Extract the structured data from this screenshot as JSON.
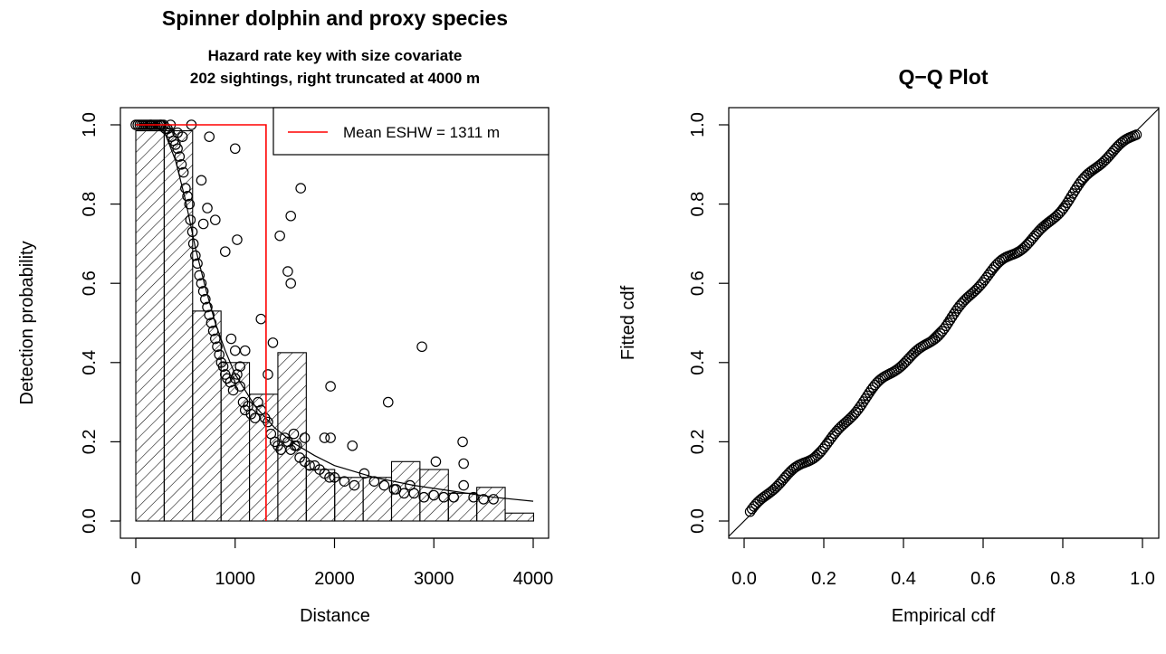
{
  "chart_data": [
    {
      "type": "bar",
      "title": "Spinner dolphin and proxy species",
      "subtitle_lines": [
        "Hazard rate key with size covariate",
        "202 sightings, right truncated at 4000 m"
      ],
      "xlabel": "Distance",
      "ylabel": "Detection probability",
      "xlim": [
        0,
        4000
      ],
      "ylim": [
        0,
        1
      ],
      "x_ticks": [
        "0",
        "1000",
        "2000",
        "3000",
        "4000"
      ],
      "y_ticks": [
        "0.0",
        "0.2",
        "0.4",
        "0.6",
        "0.8",
        "1.0"
      ],
      "bin_width": 286,
      "histogram": [
        0.985,
        0.985,
        0.53,
        0.4,
        0.32,
        0.425,
        0.13,
        0.11,
        0.11,
        0.15,
        0.13,
        0.07,
        0.085,
        0.02
      ],
      "fitted_curve": {
        "x": [
          0,
          100,
          200,
          300,
          400,
          500,
          600,
          700,
          800,
          900,
          1000,
          1200,
          1400,
          1600,
          1800,
          2000,
          2400,
          2800,
          3200,
          3600,
          4000
        ],
        "y": [
          1.0,
          1.0,
          0.995,
          0.975,
          0.91,
          0.81,
          0.69,
          0.59,
          0.5,
          0.43,
          0.37,
          0.29,
          0.235,
          0.195,
          0.165,
          0.14,
          0.11,
          0.09,
          0.075,
          0.06,
          0.05
        ]
      },
      "points": [
        [
          0,
          1.0
        ],
        [
          20,
          1.0
        ],
        [
          40,
          1.0
        ],
        [
          60,
          1.0
        ],
        [
          80,
          1.0
        ],
        [
          100,
          1.0
        ],
        [
          120,
          1.0
        ],
        [
          140,
          1.0
        ],
        [
          160,
          1.0
        ],
        [
          180,
          1.0
        ],
        [
          200,
          1.0
        ],
        [
          220,
          1.0
        ],
        [
          240,
          1.0
        ],
        [
          260,
          1.0
        ],
        [
          280,
          1.0
        ],
        [
          300,
          0.99
        ],
        [
          320,
          0.99
        ],
        [
          340,
          0.98
        ],
        [
          360,
          0.97
        ],
        [
          380,
          0.96
        ],
        [
          400,
          0.95
        ],
        [
          420,
          0.94
        ],
        [
          440,
          0.92
        ],
        [
          460,
          0.9
        ],
        [
          480,
          0.88
        ],
        [
          500,
          0.84
        ],
        [
          520,
          0.82
        ],
        [
          540,
          0.8
        ],
        [
          550,
          0.76
        ],
        [
          570,
          0.73
        ],
        [
          580,
          0.7
        ],
        [
          600,
          0.67
        ],
        [
          620,
          0.65
        ],
        [
          640,
          0.62
        ],
        [
          660,
          0.6
        ],
        [
          680,
          0.58
        ],
        [
          700,
          0.56
        ],
        [
          720,
          0.54
        ],
        [
          740,
          0.52
        ],
        [
          760,
          0.5
        ],
        [
          780,
          0.48
        ],
        [
          800,
          0.46
        ],
        [
          820,
          0.44
        ],
        [
          840,
          0.42
        ],
        [
          860,
          0.4
        ],
        [
          880,
          0.39
        ],
        [
          900,
          0.37
        ],
        [
          920,
          0.36
        ],
        [
          950,
          0.35
        ],
        [
          980,
          0.33
        ],
        [
          1000,
          0.36
        ],
        [
          1020,
          0.37
        ],
        [
          1050,
          0.34
        ],
        [
          1080,
          0.3
        ],
        [
          1100,
          0.28
        ],
        [
          1130,
          0.29
        ],
        [
          1160,
          0.27
        ],
        [
          1200,
          0.26
        ],
        [
          1230,
          0.3
        ],
        [
          1260,
          0.28
        ],
        [
          1300,
          0.26
        ],
        [
          1330,
          0.25
        ],
        [
          1360,
          0.22
        ],
        [
          1400,
          0.2
        ],
        [
          1430,
          0.19
        ],
        [
          1460,
          0.18
        ],
        [
          1500,
          0.21
        ],
        [
          1530,
          0.2
        ],
        [
          1560,
          0.18
        ],
        [
          1600,
          0.19
        ],
        [
          1650,
          0.16
        ],
        [
          1700,
          0.15
        ],
        [
          1750,
          0.14
        ],
        [
          1800,
          0.14
        ],
        [
          1850,
          0.13
        ],
        [
          1900,
          0.12
        ],
        [
          1950,
          0.11
        ],
        [
          2000,
          0.11
        ],
        [
          2100,
          0.1
        ],
        [
          2200,
          0.09
        ],
        [
          2300,
          0.12
        ],
        [
          2400,
          0.1
        ],
        [
          2500,
          0.09
        ],
        [
          2600,
          0.08
        ],
        [
          2700,
          0.07
        ],
        [
          2800,
          0.07
        ],
        [
          2900,
          0.06
        ],
        [
          3000,
          0.065
        ],
        [
          3100,
          0.06
        ],
        [
          3200,
          0.06
        ],
        [
          3300,
          0.09
        ],
        [
          3400,
          0.06
        ],
        [
          3500,
          0.055
        ],
        [
          3600,
          0.055
        ],
        [
          150,
          1.0
        ],
        [
          250,
          1.0
        ],
        [
          350,
          1.0
        ],
        [
          420,
          0.98
        ],
        [
          470,
          0.97
        ],
        [
          560,
          1.0
        ],
        [
          660,
          0.86
        ],
        [
          740,
          0.97
        ],
        [
          800,
          0.76
        ],
        [
          1000,
          0.94
        ],
        [
          720,
          0.79
        ],
        [
          680,
          0.75
        ],
        [
          900,
          0.68
        ],
        [
          1020,
          0.71
        ],
        [
          1260,
          0.51
        ],
        [
          1450,
          0.72
        ],
        [
          1530,
          0.63
        ],
        [
          1560,
          0.6
        ],
        [
          1560,
          0.77
        ],
        [
          1660,
          0.84
        ],
        [
          1380,
          0.45
        ],
        [
          1330,
          0.37
        ],
        [
          1100,
          0.43
        ],
        [
          1050,
          0.39
        ],
        [
          1000,
          0.43
        ],
        [
          960,
          0.46
        ],
        [
          1960,
          0.34
        ],
        [
          2880,
          0.44
        ],
        [
          2540,
          0.3
        ],
        [
          3290,
          0.2
        ],
        [
          3020,
          0.15
        ],
        [
          3300,
          0.145
        ],
        [
          2180,
          0.19
        ],
        [
          1960,
          0.21
        ],
        [
          1900,
          0.21
        ],
        [
          2760,
          0.09
        ],
        [
          2620,
          0.08
        ],
        [
          1700,
          0.21
        ],
        [
          1620,
          0.19
        ],
        [
          1590,
          0.22
        ]
      ],
      "reference_line": {
        "label": "Mean ESHW = 1311 m",
        "x": 1311,
        "color": "#ff0000"
      },
      "legend": {
        "position": "top-right",
        "entries": [
          "Mean ESHW = 1311 m"
        ]
      }
    },
    {
      "type": "scatter",
      "title": "Q−Q Plot",
      "xlabel": "Empirical cdf",
      "ylabel": "Fitted cdf",
      "xlim": [
        0,
        1
      ],
      "ylim": [
        0,
        1
      ],
      "x_ticks": [
        "0.0",
        "0.2",
        "0.4",
        "0.6",
        "0.8",
        "1.0"
      ],
      "y_ticks": [
        "0.0",
        "0.2",
        "0.4",
        "0.6",
        "0.8",
        "1.0"
      ],
      "reference_line": "y = x",
      "n_points": 202
    }
  ]
}
